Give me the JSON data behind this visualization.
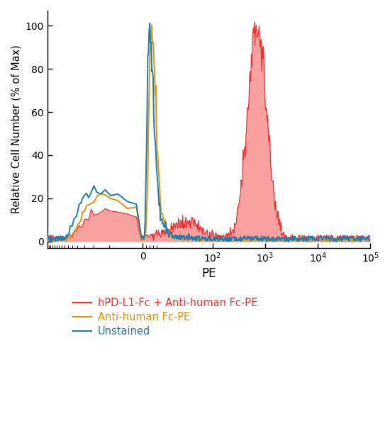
{
  "title": "",
  "xlabel": "PE",
  "ylabel": "Relative Cell Number (% of Max)",
  "ylim": [
    -3,
    107
  ],
  "legend": [
    {
      "label": "hPD-L1-Fc + Anti-human Fc-PE",
      "color": "#f03030",
      "fill": "#f9a0a0"
    },
    {
      "label": "Anti-human Fc-PE",
      "color": "#e8920a",
      "fill": null
    },
    {
      "label": "Unstained",
      "color": "#1a7db5",
      "fill": null
    }
  ],
  "linthresh": 10,
  "linscale": 0.3,
  "xlim": [
    -300,
    100000
  ],
  "xticks": [
    0,
    100,
    1000,
    10000,
    100000
  ],
  "yticks": [
    0,
    20,
    40,
    60,
    80,
    100
  ]
}
